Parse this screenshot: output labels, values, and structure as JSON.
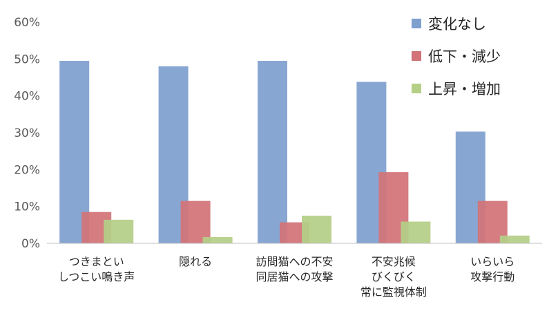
{
  "chart_data": {
    "type": "bar",
    "categories": [
      [
        "つきまとい",
        "しつこい鳴き声"
      ],
      [
        "隠れる"
      ],
      [
        "訪問猫への不安",
        "同居猫への攻撃"
      ],
      [
        "不安兆候",
        "びくびく",
        "常に監視体制"
      ],
      [
        "いらいら",
        "攻撃行動"
      ]
    ],
    "series": [
      {
        "name": "変化なし",
        "color": "#7F9FCF",
        "values": [
          49.5,
          48,
          49.5,
          43.8,
          30.3
        ]
      },
      {
        "name": "低下・減少",
        "color": "#D27377",
        "values": [
          8.5,
          11.5,
          5.7,
          19.3,
          11.5
        ]
      },
      {
        "name": "上昇・増加",
        "color": "#B5CF86",
        "values": [
          6.4,
          1.7,
          7.5,
          5.9,
          2.1
        ]
      }
    ],
    "ylim": [
      0,
      60
    ],
    "yticks": [
      0,
      10,
      20,
      30,
      40,
      50,
      60
    ],
    "ytick_suffix": "%",
    "grid": false,
    "legend": "top-right"
  }
}
